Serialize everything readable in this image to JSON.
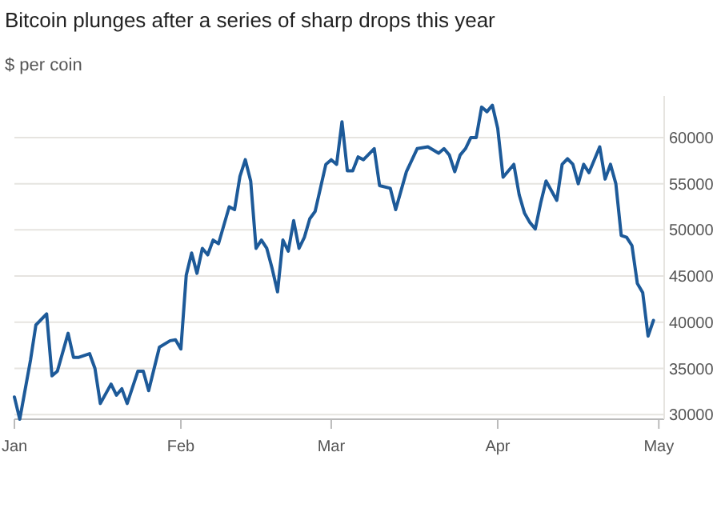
{
  "chart_data": {
    "type": "line",
    "title": "Bitcoin plunges after a series of sharp drops this year",
    "subtitle": "$ per coin",
    "x": [
      "--01-01",
      "--01-02",
      "--01-04",
      "--01-05",
      "--01-07",
      "--01-08",
      "--01-09",
      "--01-11",
      "--01-12",
      "--01-13",
      "--01-15",
      "--01-16",
      "--01-17",
      "--01-19",
      "--01-20",
      "--01-21",
      "--01-22",
      "--01-24",
      "--01-25",
      "--01-26",
      "--01-28",
      "--01-30",
      "--01-31",
      "--02-01",
      "--02-02",
      "--02-03",
      "--02-04",
      "--02-05",
      "--02-06",
      "--02-07",
      "--02-08",
      "--02-10",
      "--02-11",
      "--02-12",
      "--02-13",
      "--02-14",
      "--02-15",
      "--02-16",
      "--02-17",
      "--02-18",
      "--02-19",
      "--02-20",
      "--02-21",
      "--02-22",
      "--02-23",
      "--02-24",
      "--02-25",
      "--02-26",
      "--02-28",
      "--03-01",
      "--03-02",
      "--03-03",
      "--03-04",
      "--03-05",
      "--03-06",
      "--03-07",
      "--03-09",
      "--03-10",
      "--03-12",
      "--03-13",
      "--03-15",
      "--03-17",
      "--03-19",
      "--03-21",
      "--03-22",
      "--03-23",
      "--03-24",
      "--03-25",
      "--03-26",
      "--03-27",
      "--03-28",
      "--03-29",
      "--03-30",
      "--03-31",
      "--04-01",
      "--04-02",
      "--04-04",
      "--04-05",
      "--04-06",
      "--04-07",
      "--04-08",
      "--04-09",
      "--04-10",
      "--04-12",
      "--04-13",
      "--04-14",
      "--04-15",
      "--04-16",
      "--04-17",
      "--04-18",
      "--04-20",
      "--04-21",
      "--04-22",
      "--04-23",
      "--04-24",
      "--04-25",
      "--04-26",
      "--04-27",
      "--04-28",
      "--04-29",
      "--04-30"
    ],
    "series": [
      {
        "color": "#1d5a99",
        "values": [
          31900,
          29500,
          35900,
          39700,
          40900,
          34200,
          34700,
          38800,
          36200,
          36200,
          36600,
          35000,
          31200,
          33300,
          32100,
          32800,
          31200,
          34700,
          34700,
          32600,
          37300,
          38000,
          38100,
          37100,
          45100,
          47500,
          45300,
          48000,
          47300,
          48900,
          48500,
          52500,
          52200,
          55800,
          57600,
          55300,
          48000,
          48900,
          48000,
          45800,
          43300,
          48900,
          47700,
          51000,
          48000,
          49200,
          51200,
          52000,
          57100,
          57600,
          57100,
          61700,
          56400,
          56400,
          57900,
          57600,
          58800,
          54800,
          54500,
          52200,
          56300,
          58800,
          59000,
          58300,
          58800,
          58100,
          56300,
          58100,
          58800,
          60000,
          60000,
          63300,
          62800,
          63500,
          61000,
          55700,
          57100,
          53800,
          51800,
          50800,
          50100,
          52900,
          55300,
          53200,
          57100,
          57700,
          57100,
          55000,
          57100,
          56200,
          59000,
          55500,
          57100,
          55000,
          49400,
          49200,
          48300,
          44200,
          43200,
          38500,
          40200
        ]
      }
    ],
    "xlim": [
      "--01-01",
      "--05-02"
    ],
    "xticks": [
      {
        "value": "--01-01",
        "label": "Jan"
      },
      {
        "value": "--02-01",
        "label": "Feb"
      },
      {
        "value": "--03-01",
        "label": "Mar"
      },
      {
        "value": "--04-01",
        "label": "Apr"
      },
      {
        "value": "--05-01",
        "label": "May"
      }
    ],
    "ylim": [
      29500,
      64500
    ],
    "yticks": [
      30000,
      35000,
      40000,
      45000,
      50000,
      55000,
      60000
    ],
    "grid": "y",
    "line_style": "solid",
    "marker": "none"
  }
}
